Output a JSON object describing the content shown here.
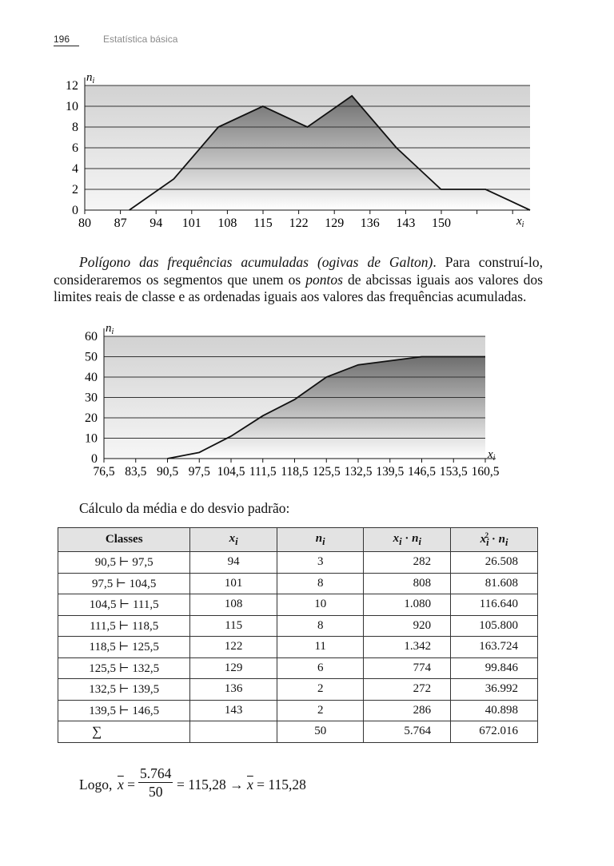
{
  "header": {
    "page_number": "196",
    "book_title": "Estatística básica"
  },
  "chart1_data": {
    "type": "area",
    "ylabel": "n",
    "ylabel_sub": "i",
    "xlabel": "x",
    "xlabel_sub": "i",
    "y_ticks": [
      "0",
      "2",
      "4",
      "6",
      "8",
      "10",
      "12"
    ],
    "x_ticks": [
      "80",
      "87",
      "94",
      "101",
      "108",
      "115",
      "122",
      "129",
      "136",
      "143",
      "150"
    ],
    "ylim": [
      0,
      12
    ],
    "x": [
      87,
      94,
      101,
      108,
      115,
      122,
      129,
      136,
      143,
      150
    ],
    "y": [
      0,
      3,
      8,
      10,
      8,
      11,
      6,
      2,
      2,
      0
    ]
  },
  "paragraph": {
    "italic_lead": "Polígono das frequências acumuladas (ogivas de Galton)",
    "text1": ". Para construí-lo, consideraremos os segmentos que unem os ",
    "italic_word": "pontos",
    "text2": " de abcissas iguais aos valores dos limites reais de classe e as ordenadas iguais aos valores das frequências acumuladas."
  },
  "chart_data": {
    "type": "area",
    "ylabel": "n",
    "ylabel_sub": "i",
    "xlabel": "x",
    "xlabel_sub": "i",
    "y_ticks": [
      "0",
      "10",
      "20",
      "30",
      "40",
      "50",
      "60"
    ],
    "x_ticks": [
      "76,5",
      "83,5",
      "90,5",
      "97,5",
      "104,5",
      "111,5",
      "118,5",
      "125,5",
      "132,5",
      "139,5",
      "146,5",
      "153,5",
      "160,5"
    ],
    "ylim": [
      0,
      60
    ],
    "x": [
      90.5,
      97.5,
      104.5,
      111.5,
      118.5,
      125.5,
      132.5,
      139.5,
      146.5,
      153.5,
      160.5
    ],
    "y": [
      0,
      3,
      11,
      21,
      29,
      40,
      46,
      48,
      50,
      50,
      50
    ]
  },
  "calc_title": "Cálculo da média e do desvio padrão:",
  "table": {
    "headers": [
      "Classes",
      "x",
      "n",
      "x",
      "x"
    ],
    "header_subs": [
      "",
      "i",
      "i",
      "i",
      "i"
    ],
    "header_dot": "·",
    "header_sup": "2",
    "header_tail_n": "n",
    "header_tail_sub": "i",
    "class_sep": "⊢",
    "rows": [
      [
        "90,5",
        "97,5",
        "94",
        "3",
        "282",
        "26.508"
      ],
      [
        "97,5",
        "104,5",
        "101",
        "8",
        "808",
        "81.608"
      ],
      [
        "104,5",
        "111,5",
        "108",
        "10",
        "1.080",
        "116.640"
      ],
      [
        "111,5",
        "118,5",
        "115",
        "8",
        "920",
        "105.800"
      ],
      [
        "118,5",
        "125,5",
        "122",
        "11",
        "1.342",
        "163.724"
      ],
      [
        "125,5",
        "132,5",
        "129",
        "6",
        "774",
        "99.846"
      ],
      [
        "132,5",
        "139,5",
        "136",
        "2",
        "272",
        "36.992"
      ],
      [
        "139,5",
        "146,5",
        "143",
        "2",
        "286",
        "40.898"
      ]
    ],
    "total": [
      "∑",
      "",
      "50",
      "5.764",
      "672.016"
    ]
  },
  "conclusion": {
    "lead": "Logo,",
    "xbar": "x",
    "eq": "=",
    "numerator": "5.764",
    "denominator": "50",
    "result": "= 115,28 → ",
    "final_rhs": "= 115,28"
  }
}
